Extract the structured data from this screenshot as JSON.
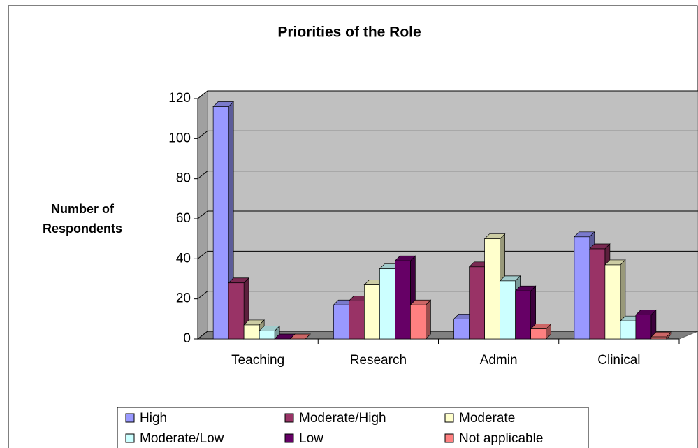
{
  "chart_data": {
    "type": "bar3d",
    "title": "Priorities of the Role",
    "ylabel": [
      "Number of",
      "Respondents"
    ],
    "categories": [
      "Teaching",
      "Research",
      "Admin",
      "Clinical"
    ],
    "series": [
      {
        "name": "High",
        "color": "#9999ff",
        "values": [
          116,
          17,
          10,
          51
        ]
      },
      {
        "name": "Moderate/High",
        "color": "#993366",
        "values": [
          28,
          19,
          36,
          45
        ]
      },
      {
        "name": "Moderate",
        "color": "#ffffcc",
        "values": [
          7,
          27,
          50,
          37
        ]
      },
      {
        "name": "Moderate/Low",
        "color": "#ccffff",
        "values": [
          4,
          35,
          29,
          9
        ]
      },
      {
        "name": "Low",
        "color": "#660066",
        "values": [
          0,
          39,
          24,
          12
        ]
      },
      {
        "name": "Not applicable",
        "color": "#ff8080",
        "values": [
          0,
          17,
          5,
          1
        ]
      }
    ],
    "ylim": [
      0,
      120
    ],
    "yticks": [
      0,
      20,
      40,
      60,
      80,
      100,
      120
    ],
    "grid": true,
    "legend": "bottom"
  }
}
